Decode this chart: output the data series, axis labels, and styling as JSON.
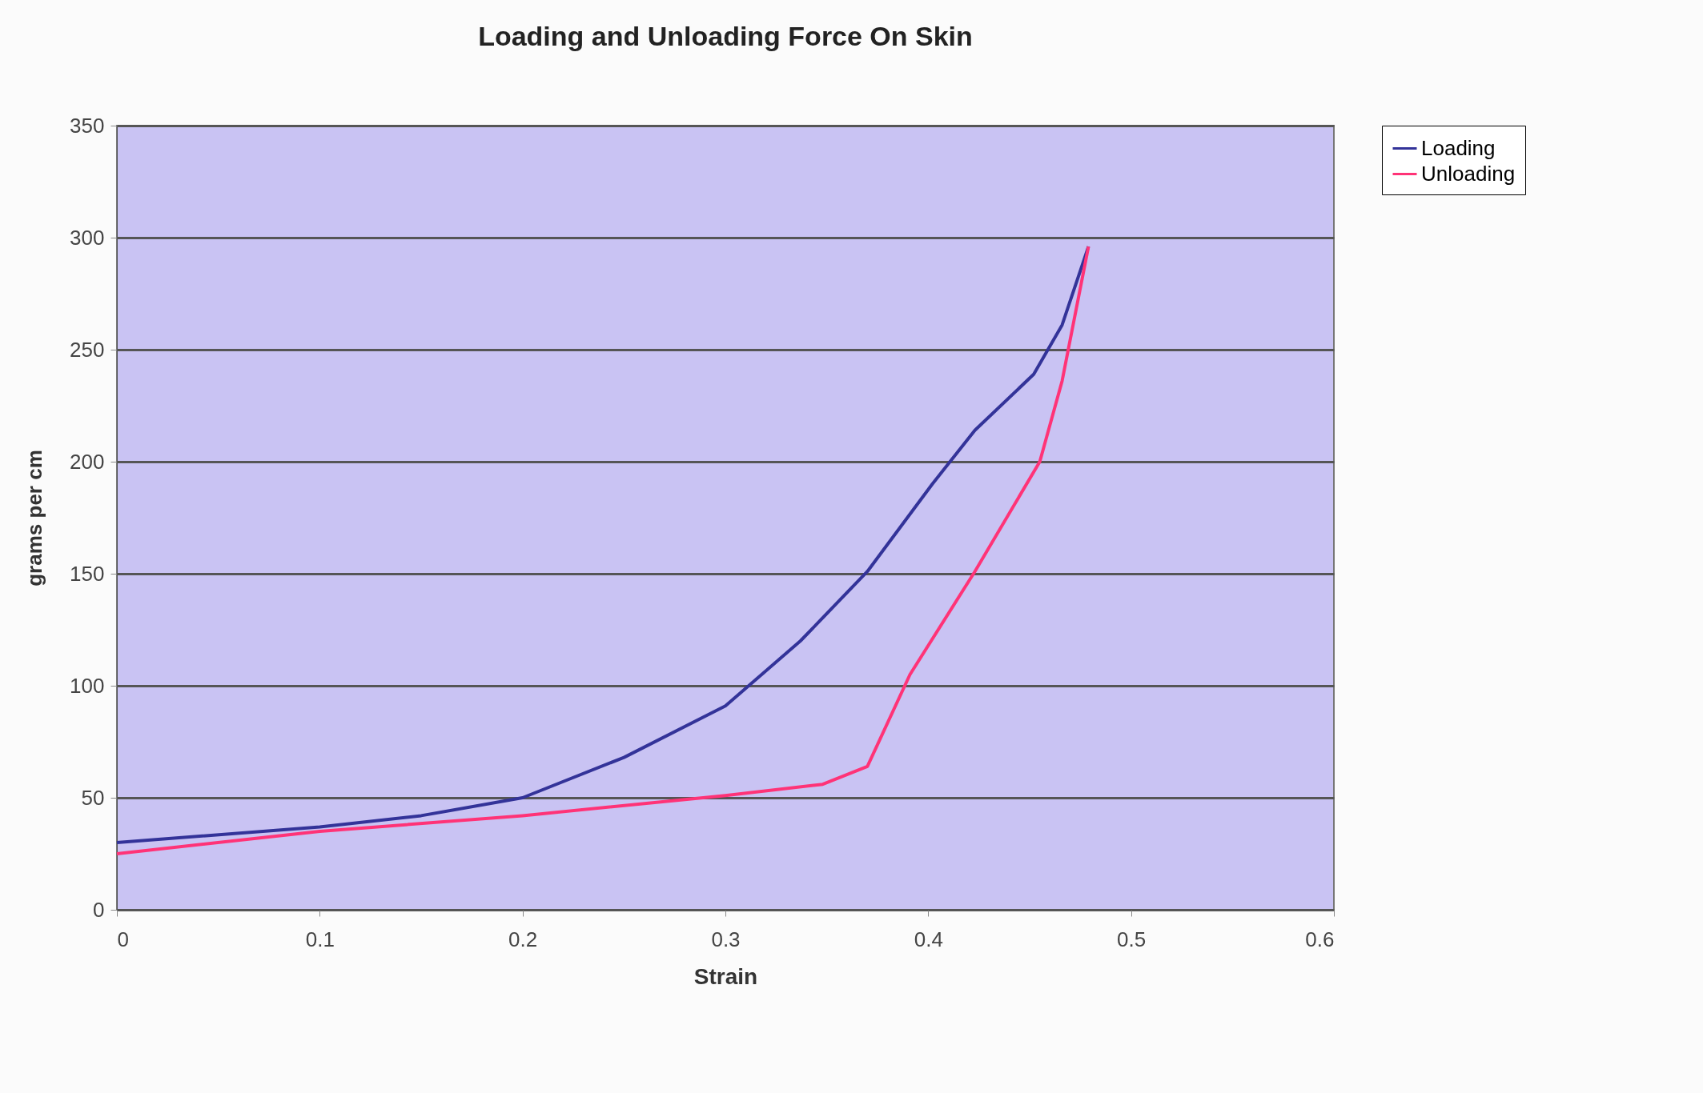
{
  "chart_data": {
    "type": "line",
    "title": "Loading and Unloading Force On Skin",
    "xlabel": "Strain",
    "ylabel": "grams per cm",
    "series": [
      {
        "name": "Loading",
        "color": "#333399",
        "x": [
          0,
          0.1,
          0.15,
          0.2,
          0.25,
          0.3,
          0.337,
          0.37,
          0.402,
          0.423,
          0.452,
          0.466,
          0.479
        ],
        "values": [
          30,
          37,
          42,
          50,
          68,
          91,
          120,
          151,
          190,
          214,
          239,
          261,
          296
        ]
      },
      {
        "name": "Unloading",
        "color": "#ff3377",
        "x": [
          0,
          0.1,
          0.2,
          0.3,
          0.348,
          0.37,
          0.391,
          0.423,
          0.455,
          0.466,
          0.479
        ],
        "values": [
          25,
          35,
          42,
          51,
          56,
          64,
          105,
          151,
          200,
          236,
          296
        ]
      }
    ],
    "xlim": [
      0,
      0.6
    ],
    "xticks": [
      0,
      0.1,
      0.2,
      0.3,
      0.4,
      0.5,
      0.6
    ],
    "ylim": [
      0,
      350
    ],
    "yticks": [
      0,
      50,
      100,
      150,
      200,
      250,
      300,
      350
    ],
    "grid": "y",
    "legend": "right",
    "marker": "none",
    "line_style": "solid"
  }
}
